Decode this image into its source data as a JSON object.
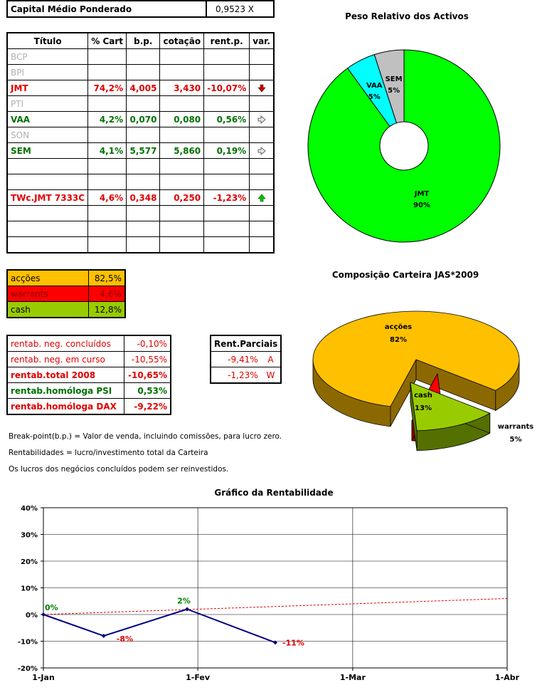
{
  "capital": {
    "label": "Capital Médio Ponderado",
    "value": "0,9523 X"
  },
  "portfolio": {
    "headers": [
      "Título",
      "% Cart",
      "b.p.",
      "cotação",
      "rent.p.",
      "var."
    ],
    "rows": [
      {
        "titulo": "BCP",
        "cart": "",
        "bp": "",
        "cot": "",
        "rent": "",
        "var": "",
        "status": "inactive"
      },
      {
        "titulo": "BPI",
        "cart": "",
        "bp": "",
        "cot": "",
        "rent": "",
        "var": "",
        "status": "inactive"
      },
      {
        "titulo": "JMT",
        "cart": "74,2%",
        "bp": "4,005",
        "cot": "3,430",
        "rent": "-10,07%",
        "var": "down",
        "status": "neg"
      },
      {
        "titulo": "PTI",
        "cart": "",
        "bp": "",
        "cot": "",
        "rent": "",
        "var": "",
        "status": "inactive"
      },
      {
        "titulo": "VAA",
        "cart": "4,2%",
        "bp": "0,070",
        "cot": "0,080",
        "rent": "0,56%",
        "var": "right",
        "status": "pos"
      },
      {
        "titulo": "SON",
        "cart": "",
        "bp": "",
        "cot": "",
        "rent": "",
        "var": "",
        "status": "inactive"
      },
      {
        "titulo": "SEM",
        "cart": "4,1%",
        "bp": "5,577",
        "cot": "5,860",
        "rent": "0,19%",
        "var": "right",
        "status": "pos"
      },
      {
        "titulo": "",
        "cart": "",
        "bp": "",
        "cot": "",
        "rent": "",
        "var": "",
        "status": "empty"
      },
      {
        "titulo": "",
        "cart": "",
        "bp": "",
        "cot": "",
        "rent": "",
        "var": "",
        "status": "empty"
      },
      {
        "titulo": "TWc.JMT 7333C",
        "cart": "4,6%",
        "bp": "0,348",
        "cot": "0,250",
        "rent": "-1,23%",
        "var": "up",
        "status": "neg"
      },
      {
        "titulo": "",
        "cart": "",
        "bp": "",
        "cot": "",
        "rent": "",
        "var": "",
        "status": "empty"
      },
      {
        "titulo": "",
        "cart": "",
        "bp": "",
        "cot": "",
        "rent": "",
        "var": "",
        "status": "empty"
      },
      {
        "titulo": "",
        "cart": "",
        "bp": "",
        "cot": "",
        "rent": "",
        "var": "",
        "status": "empty"
      }
    ]
  },
  "composition": [
    {
      "label": "acções",
      "value": "82,5%",
      "bg": "#ffc000",
      "fg": "#000000"
    },
    {
      "label": "warrants",
      "value": "4,6%",
      "bg": "#ff0000",
      "fg": "#800000"
    },
    {
      "label": "cash",
      "value": "12,8%",
      "bg": "#99cc00",
      "fg": "#000000"
    }
  ],
  "rentab": [
    {
      "label": "rentab. neg. concluídos",
      "value": "-0,10%",
      "style": "red"
    },
    {
      "label": "rentab. neg. em curso",
      "value": "-10,55%",
      "style": "red"
    },
    {
      "label": "rentab.total 2008",
      "value": "-10,65%",
      "style": "red-bold"
    },
    {
      "label": "rentab.homóloga PSI",
      "value": "0,53%",
      "style": "green-bold"
    },
    {
      "label": "rentab.homóloga DAX",
      "value": "-9,22%",
      "style": "red-bold"
    }
  ],
  "parciais": {
    "header": "Rent.Parciais",
    "rows": [
      {
        "value": "-9,41%",
        "code": "A"
      },
      {
        "value": "-1,23%",
        "code": "W"
      }
    ]
  },
  "notes": [
    "Break-point(b.p.) = Valor de venda, incluindo comissões, para lucro zero.",
    "Rentabilidades = lucro/investimento total da Carteira",
    "Os lucros dos negócios concluídos podem ser reinvestidos."
  ],
  "chart_data": [
    {
      "type": "pie",
      "title": "Peso Relativo dos Activos",
      "style": "doughnut",
      "slices": [
        {
          "label": "JMT",
          "value": 90,
          "text": "90%",
          "color": "#00ff00"
        },
        {
          "label": "VAA",
          "value": 5,
          "text": "5%",
          "color": "#00ffff"
        },
        {
          "label": "SEM",
          "value": 5,
          "text": "5%",
          "color": "#c0c0c0"
        }
      ]
    },
    {
      "type": "pie",
      "title": "Composição Carteira JAS*2009",
      "style": "3d-exploded",
      "slices": [
        {
          "label": "acções",
          "value": 82,
          "text": "82%",
          "color": "#ffc000"
        },
        {
          "label": "cash",
          "value": 13,
          "text": "13%",
          "color": "#99cc00"
        },
        {
          "label": "warrants",
          "value": 5,
          "text": "5%",
          "color": "#ff0000"
        }
      ]
    },
    {
      "type": "line",
      "title": "Gráfico da Rentabilidade",
      "x_ticks": [
        "1-Jan",
        "1-Fev",
        "1-Mar",
        "1-Abr"
      ],
      "y_ticks": [
        "40%",
        "30%",
        "20%",
        "10%",
        "0%",
        "-10%",
        "-20%"
      ],
      "ylim": [
        -20,
        40
      ],
      "xlim_days": [
        0,
        90
      ],
      "grid": true,
      "series": [
        {
          "kind": "solid",
          "color": "#000080",
          "points": [
            {
              "x": "1-Jan",
              "x_day": 0,
              "y": 0,
              "label": "0%",
              "label_color": "#008000"
            },
            {
              "x": "14-Jan",
              "x_day": 13,
              "y": -8,
              "label": "-8%",
              "label_color": "#e00000"
            },
            {
              "x": "1-Fev",
              "x_day": 31,
              "y": 2,
              "label": "2%",
              "label_color": "#008000"
            },
            {
              "x": "20-Fev",
              "x_day": 50,
              "y": -10.5,
              "label": "-11%",
              "label_color": "#e00000"
            }
          ]
        },
        {
          "kind": "dashed",
          "color": "#e00000",
          "points": [
            {
              "x": "1-Jan",
              "x_day": 0,
              "y": 0
            },
            {
              "x": "1-Abr",
              "x_day": 100,
              "y": 6
            }
          ]
        }
      ]
    }
  ]
}
